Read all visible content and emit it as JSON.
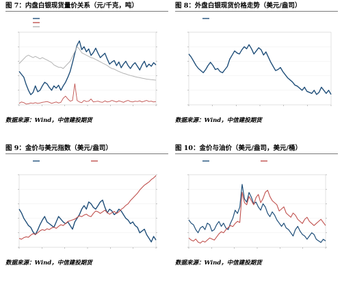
{
  "colors": {
    "navy": "#1f4e79",
    "red": "#c0504d",
    "gray": "#b3b3b3",
    "axis": "#888888"
  },
  "figures": [
    {
      "caption": "图 7：内盘白银现货量价关系（元/千克，吨）",
      "source": "数据来源：Wind，中信建投期货",
      "chart_data": {
        "type": "line",
        "x": [
          0,
          1,
          2,
          3,
          4,
          5,
          6,
          7,
          8,
          9,
          10,
          11,
          12,
          13,
          14,
          15,
          16,
          17,
          18,
          19,
          20,
          21,
          22,
          23,
          24,
          25,
          26,
          27,
          28,
          29,
          30,
          31,
          32,
          33,
          34,
          35,
          36,
          37,
          38,
          39,
          40,
          41,
          42,
          43,
          44,
          45,
          46,
          47,
          48,
          49,
          50,
          51,
          52,
          53,
          54,
          55,
          56,
          57,
          58,
          59
        ],
        "series": [
          {
            "name": "",
            "axis": "left",
            "values": [
              4160,
              4120,
              4080,
              3980,
              3900,
              3840,
              3870,
              3960,
              3880,
              3900,
              3960,
              4010,
              3990,
              3940,
              3900,
              3960,
              3930,
              3970,
              3900,
              3960,
              4010,
              4080,
              4160,
              4280,
              4410,
              4520,
              4580,
              4460,
              4500,
              4430,
              4470,
              4380,
              4420,
              4480,
              4410,
              4350,
              4380,
              4410,
              4330,
              4260,
              4290,
              4310,
              4240,
              4290,
              4210,
              4260,
              4300,
              4240,
              4200,
              4250,
              4280,
              4230,
              4180,
              4250,
              4300,
              4220,
              4260,
              4230,
              4280,
              4250
            ]
          },
          {
            "name": "",
            "axis": "left",
            "values": [
              3720,
              3740,
              3730,
              3710,
              3715,
              3725,
              3720,
              3730,
              3720,
              3725,
              3735,
              3740,
              3745,
              3735,
              3720,
              3730,
              3740,
              3725,
              3735,
              3790,
              3820,
              3780,
              3750,
              3760,
              3990,
              3760,
              3740,
              3730,
              3760,
              3745,
              3750,
              3780,
              3740,
              3745,
              3750,
              3740,
              3735,
              3755,
              3740,
              3745,
              3760,
              3750,
              3740,
              3755,
              3745,
              3735,
              3750,
              3760,
              3745,
              3740,
              3750,
              3745,
              3755,
              3740,
              3750,
              3760,
              3745,
              3750,
              3740,
              3745
            ]
          },
          {
            "name": "",
            "axis": "right",
            "values": [
              1940,
              1960,
              1980,
              2000,
              2010,
              2000,
              1990,
              2000,
              1990,
              1980,
              1990,
              1980,
              1970,
              1960,
              1950,
              1930,
              1920,
              1910,
              1910,
              1900,
              1920,
              1940,
              1960,
              2000,
              2040,
              2080,
              2060,
              2030,
              2020,
              2010,
              2000,
              1990,
              1985,
              1975,
              1965,
              1955,
              1945,
              1935,
              1925,
              1910,
              1900,
              1895,
              1885,
              1875,
              1868,
              1860,
              1855,
              1848,
              1842,
              1838,
              1832,
              1828,
              1824,
              1820,
              1816,
              1812,
              1810,
              1808,
              1806,
              1804
            ]
          }
        ],
        "ylim": [
          3700,
          4700
        ],
        "y2lim": [
          1600,
          2200
        ]
      }
    },
    {
      "caption": "图 8：外盘白银现货价格走势（美元/盎司）",
      "source": "数据来源：Wind，中信建投期货",
      "chart_data": {
        "type": "line",
        "x": [
          0,
          1,
          2,
          3,
          4,
          5,
          6,
          7,
          8,
          9,
          10,
          11,
          12,
          13,
          14,
          15,
          16,
          17,
          18,
          19,
          20,
          21,
          22,
          23,
          24,
          25,
          26,
          27,
          28,
          29,
          30,
          31,
          32,
          33,
          34,
          35,
          36,
          37,
          38,
          39,
          40,
          41,
          42,
          43,
          44,
          45,
          46,
          47,
          48,
          49,
          50,
          51,
          52,
          53,
          54,
          55,
          56,
          57,
          58,
          59
        ],
        "series": [
          {
            "name": "",
            "values": [
              25.8,
              25.2,
              24.4,
              23.6,
              23.0,
              22.6,
              22.2,
              22.8,
              23.6,
              24.2,
              23.6,
              22.8,
              23.0,
              22.4,
              22.2,
              22.8,
              23.4,
              24.8,
              25.6,
              26.4,
              26.0,
              25.8,
              26.6,
              27.2,
              26.8,
              27.6,
              26.8,
              25.8,
              26.4,
              27.0,
              26.6,
              25.6,
              26.2,
              25.2,
              24.2,
              23.4,
              22.6,
              22.8,
              23.2,
              22.4,
              21.8,
              21.2,
              20.8,
              20.4,
              19.8,
              19.6,
              19.2,
              18.8,
              19.4,
              18.6,
              18.4,
              18.2,
              18.8,
              18.0,
              18.4,
              19.4,
              18.8,
              18.2,
              18.8,
              18.0
            ]
          }
        ],
        "ylim": [
          16,
          30
        ]
      }
    },
    {
      "caption": "图 9：金价与美元指数（美元/盎司）",
      "source": "数据来源：Wind，中信建投期货",
      "chart_data": {
        "type": "line",
        "x": [
          0,
          1,
          2,
          3,
          4,
          5,
          6,
          7,
          8,
          9,
          10,
          11,
          12,
          13,
          14,
          15,
          16,
          17,
          18,
          19,
          20,
          21,
          22,
          23,
          24,
          25,
          26,
          27,
          28,
          29,
          30,
          31,
          32,
          33,
          34,
          35,
          36,
          37,
          38,
          39,
          40,
          41,
          42,
          43,
          44,
          45,
          46,
          47,
          48,
          49,
          50,
          51,
          52,
          53,
          54,
          55,
          56,
          57,
          58,
          59
        ],
        "series": [
          {
            "name": "",
            "axis": "left",
            "values": [
              1860,
              1840,
              1810,
              1790,
              1770,
              1760,
              1735,
              1720,
              1745,
              1775,
              1800,
              1820,
              1790,
              1780,
              1770,
              1760,
              1790,
              1820,
              1805,
              1790,
              1780,
              1790,
              1770,
              1750,
              1790,
              1810,
              1830,
              1860,
              1880,
              1860,
              1900,
              1890,
              1870,
              1860,
              1880,
              1900,
              1910,
              1870,
              1840,
              1860,
              1850,
              1830,
              1840,
              1860,
              1850,
              1830,
              1810,
              1800,
              1780,
              1790,
              1770,
              1760,
              1730,
              1740,
              1750,
              1720,
              1700,
              1680,
              1710,
              1690
            ]
          },
          {
            "name": "",
            "axis": "right",
            "values": [
              90.2,
              90.0,
              90.4,
              90.6,
              90.5,
              91.0,
              91.4,
              91.2,
              91.6,
              92.1,
              92.4,
              92.2,
              92.6,
              92.4,
              92.8,
              93.0,
              92.7,
              93.2,
              93.6,
              93.4,
              93.9,
              94.4,
              94.6,
              94.8,
              95.0,
              95.4,
              95.8,
              95.6,
              96.0,
              96.2,
              95.8,
              95.6,
              96.4,
              97.0,
              96.8,
              96.4,
              96.8,
              97.2,
              96.6,
              96.2,
              96.6,
              96.9,
              96.4,
              96.8,
              97.4,
              97.8,
              98.4,
              98.8,
              99.6,
              100.2,
              100.8,
              101.4,
              102.2,
              102.8,
              103.4,
              103.8,
              104.2,
              104.8,
              105.2,
              105.8
            ]
          }
        ],
        "ylim": [
          1650,
          2050
        ],
        "y2lim": [
          88,
          106
        ]
      }
    },
    {
      "caption": "图 10：金价与油价（美元/盎司，美元/桶）",
      "source": "数据来源：Wind，中信建投期货",
      "chart_data": {
        "type": "line",
        "x": [
          0,
          1,
          2,
          3,
          4,
          5,
          6,
          7,
          8,
          9,
          10,
          11,
          12,
          13,
          14,
          15,
          16,
          17,
          18,
          19,
          20,
          21,
          22,
          23,
          24,
          25,
          26,
          27,
          28,
          29,
          30,
          31,
          32,
          33,
          34,
          35,
          36,
          37,
          38,
          39,
          40,
          41,
          42,
          43,
          44,
          45,
          46,
          47,
          48,
          49,
          50,
          51,
          52,
          53,
          54,
          55,
          56,
          57,
          58,
          59
        ],
        "series": [
          {
            "name": "",
            "axis": "left",
            "values": [
              1820,
              1800,
              1790,
              1760,
              1740,
              1770,
              1780,
              1760,
              1800,
              1790,
              1750,
              1760,
              1790,
              1810,
              1780,
              1800,
              1770,
              1760,
              1800,
              1830,
              1880,
              1860,
              1900,
              2040,
              1950,
              1930,
              1990,
              1960,
              1920,
              1930,
              1900,
              1880,
              1920,
              1900,
              1860,
              1840,
              1870,
              1850,
              1820,
              1800,
              1780,
              1800,
              1770,
              1760,
              1740,
              1720,
              1760,
              1780,
              1750,
              1730,
              1720,
              1700,
              1720,
              1740,
              1730,
              1700,
              1690,
              1680,
              1700,
              1690
            ]
          },
          {
            "name": "",
            "axis": "right",
            "values": [
              64,
              62,
              61,
              63,
              60,
              59,
              61,
              60,
              62,
              64,
              63,
              62,
              65,
              68,
              70,
              69,
              72,
              74,
              76,
              75,
              78,
              80,
              79,
              108,
              98,
              96,
              104,
              100,
              96,
              103,
              106,
              98,
              102,
              108,
              110,
              104,
              100,
              98,
              96,
              90,
              92,
              94,
              88,
              86,
              84,
              88,
              86,
              82,
              80,
              78,
              82,
              84,
              80,
              78,
              76,
              78,
              80,
              82,
              79,
              76
            ]
          }
        ],
        "ylim": [
          1650,
          2100
        ],
        "y2lim": [
          55,
          125
        ]
      }
    }
  ]
}
